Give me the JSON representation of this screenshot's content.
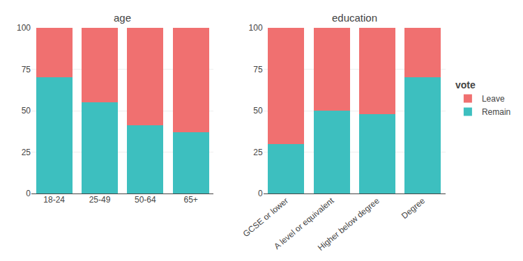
{
  "chart_data": [
    {
      "type": "bar",
      "title": "age",
      "categories": [
        "18-24",
        "25-49",
        "50-64",
        "65+"
      ],
      "series": [
        {
          "name": "Remain",
          "color": "#3DBFBF",
          "values": [
            70,
            55,
            41,
            37
          ]
        },
        {
          "name": "Leave",
          "color": "#F07070",
          "values": [
            30,
            45,
            59,
            63
          ]
        }
      ],
      "stacked": true,
      "ylim": [
        0,
        100
      ],
      "yticks": [
        0,
        25,
        50,
        75,
        100
      ],
      "grid": true,
      "legend": "right",
      "legend_title": "vote"
    },
    {
      "type": "bar",
      "title": "education",
      "categories": [
        "GCSE or lower",
        "A level or equivalent",
        "Higher below degree",
        "Degree"
      ],
      "series": [
        {
          "name": "Remain",
          "color": "#3DBFBF",
          "values": [
            30,
            50,
            48,
            70
          ]
        },
        {
          "name": "Leave",
          "color": "#F07070",
          "values": [
            70,
            50,
            52,
            30
          ]
        }
      ],
      "stacked": true,
      "ylim": [
        0,
        100
      ],
      "yticks": [
        0,
        25,
        50,
        75,
        100
      ],
      "grid": true
    }
  ]
}
